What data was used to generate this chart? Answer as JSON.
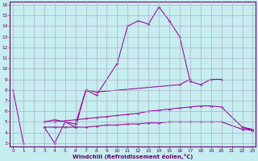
{
  "xlabel": "Windchill (Refroidissement éolien,°C)",
  "background_color": "#c6edef",
  "grid_color": "#b0b0c8",
  "line_color": "#990099",
  "xlim": [
    -0.3,
    23.3
  ],
  "ylim": [
    2.7,
    16.3
  ],
  "xticks": [
    0,
    1,
    2,
    3,
    4,
    5,
    6,
    7,
    8,
    9,
    10,
    11,
    12,
    13,
    14,
    15,
    16,
    17,
    18,
    19,
    20,
    21,
    22,
    23
  ],
  "yticks": [
    3,
    4,
    5,
    6,
    7,
    8,
    9,
    10,
    11,
    12,
    13,
    14,
    15,
    16
  ],
  "series": [
    {
      "segments": [
        {
          "x": [
            0,
            1
          ],
          "y": [
            8.0,
            3.0
          ]
        },
        {
          "x": [
            3,
            4,
            5,
            6,
            7,
            8,
            10,
            11,
            12,
            13,
            14,
            15,
            16,
            17,
            18,
            19,
            20
          ],
          "y": [
            4.5,
            3.0,
            5.0,
            4.5,
            8.0,
            7.5,
            10.5,
            14.0,
            14.5,
            14.2,
            15.8,
            14.5,
            13.0,
            8.8,
            8.5,
            9.0,
            9.0
          ]
        },
        {
          "x": [
            22,
            23
          ],
          "y": [
            4.5,
            4.2
          ]
        }
      ]
    },
    {
      "segments": [
        {
          "x": [
            3,
            4,
            5,
            6,
            7,
            8,
            16,
            17
          ],
          "y": [
            5.0,
            5.2,
            5.0,
            4.8,
            8.0,
            7.8,
            8.5,
            9.0
          ]
        },
        {
          "x": [
            22,
            23
          ],
          "y": [
            4.5,
            4.2
          ]
        }
      ]
    },
    {
      "segments": [
        {
          "x": [
            3,
            4,
            5,
            6,
            7,
            8,
            9,
            10,
            11,
            12,
            13,
            14,
            15,
            16,
            17,
            18,
            19,
            20,
            22,
            23
          ],
          "y": [
            5.0,
            5.0,
            5.1,
            5.2,
            5.3,
            5.4,
            5.5,
            5.6,
            5.7,
            5.8,
            6.0,
            6.1,
            6.2,
            6.3,
            6.4,
            6.5,
            6.5,
            6.4,
            4.5,
            4.3
          ]
        }
      ]
    },
    {
      "segments": [
        {
          "x": [
            3,
            4,
            5,
            6,
            7,
            8,
            9,
            10,
            11,
            12,
            13,
            14,
            15,
            16,
            17,
            18,
            19,
            20,
            22,
            23
          ],
          "y": [
            4.5,
            4.5,
            4.5,
            4.5,
            4.5,
            4.6,
            4.7,
            4.7,
            4.8,
            4.8,
            4.9,
            4.9,
            5.0,
            5.0,
            5.0,
            5.0,
            5.0,
            5.0,
            4.3,
            4.2
          ]
        }
      ]
    }
  ]
}
